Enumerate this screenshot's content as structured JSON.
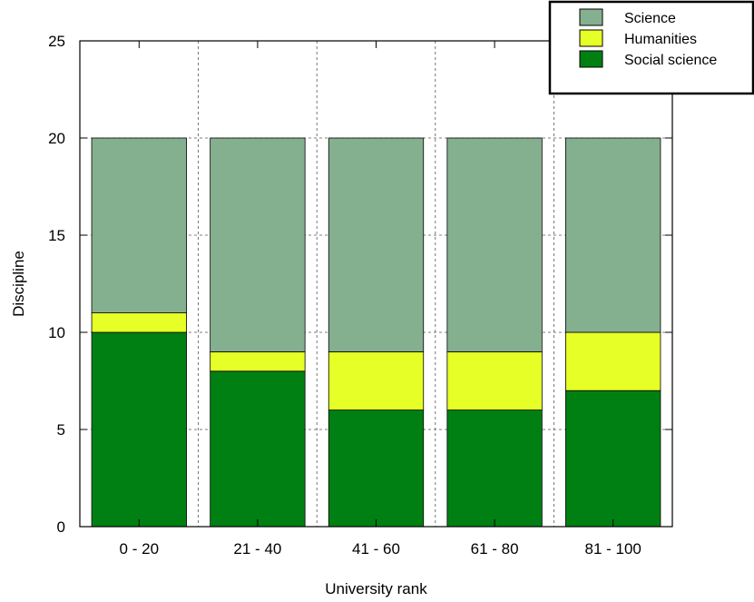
{
  "chart_data": {
    "type": "bar",
    "stacked": true,
    "title": "",
    "xlabel": "University rank",
    "ylabel": "Discipline",
    "categories": [
      "0 - 20",
      "21 - 40",
      "41 - 60",
      "61 - 80",
      "81 - 100"
    ],
    "ylim": [
      0,
      25
    ],
    "yticks": [
      0,
      5,
      10,
      15,
      20,
      25
    ],
    "grid": true,
    "legend_position": "top-right",
    "series": [
      {
        "name": "Social science",
        "color": "#008013",
        "values": [
          10,
          8,
          6,
          6,
          7
        ]
      },
      {
        "name": "Humanities",
        "color": "#e6ff26",
        "values": [
          1,
          1,
          3,
          3,
          3
        ]
      },
      {
        "name": "Science",
        "color": "#85b08f",
        "values": [
          9,
          11,
          11,
          11,
          10
        ]
      }
    ],
    "legend_order": [
      "Science",
      "Humanities",
      "Social science"
    ]
  }
}
